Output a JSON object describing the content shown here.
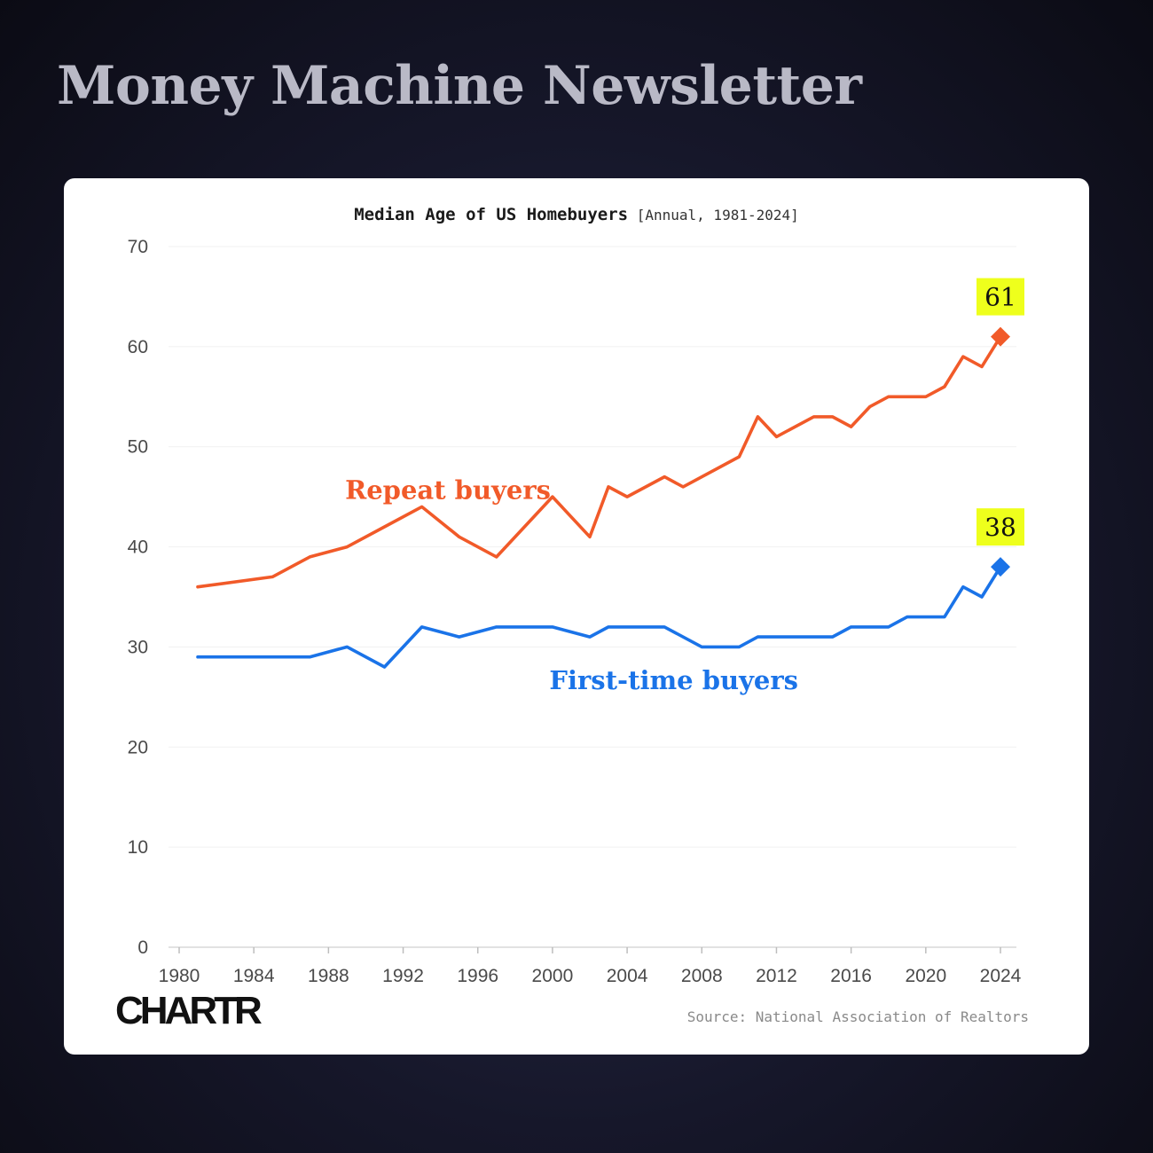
{
  "header": {
    "title": "Money Machine Newsletter"
  },
  "chart_data": {
    "type": "line",
    "title": "Median Age of US Homebuyers",
    "subtitle": "[Annual, 1981-2024]",
    "xlabel": "",
    "ylabel": "",
    "xlim": [
      1980,
      2024
    ],
    "ylim": [
      0,
      70
    ],
    "x_ticks": [
      1980,
      1984,
      1988,
      1992,
      1996,
      2000,
      2004,
      2008,
      2012,
      2016,
      2020,
      2024
    ],
    "y_ticks": [
      0,
      10,
      20,
      30,
      40,
      50,
      60,
      70
    ],
    "grid": true,
    "series": [
      {
        "name": "Repeat buyers",
        "color": "#f15a29",
        "end_marker": "diamond",
        "end_label": "61",
        "points": [
          [
            1981,
            36
          ],
          [
            1985,
            37
          ],
          [
            1987,
            39
          ],
          [
            1989,
            40
          ],
          [
            1991,
            42
          ],
          [
            1993,
            44
          ],
          [
            1995,
            41
          ],
          [
            1997,
            39
          ],
          [
            2000,
            45
          ],
          [
            2002,
            41
          ],
          [
            2003,
            46
          ],
          [
            2004,
            45
          ],
          [
            2006,
            47
          ],
          [
            2007,
            46
          ],
          [
            2010,
            49
          ],
          [
            2011,
            53
          ],
          [
            2012,
            51
          ],
          [
            2014,
            53
          ],
          [
            2015,
            53
          ],
          [
            2016,
            52
          ],
          [
            2017,
            54
          ],
          [
            2018,
            55
          ],
          [
            2019,
            55
          ],
          [
            2020,
            55
          ],
          [
            2021,
            56
          ],
          [
            2022,
            59
          ],
          [
            2023,
            58
          ],
          [
            2024,
            61
          ]
        ]
      },
      {
        "name": "First-time buyers",
        "color": "#1a73e8",
        "end_marker": "diamond",
        "end_label": "38",
        "points": [
          [
            1981,
            29
          ],
          [
            1985,
            29
          ],
          [
            1987,
            29
          ],
          [
            1989,
            30
          ],
          [
            1991,
            28
          ],
          [
            1993,
            32
          ],
          [
            1995,
            31
          ],
          [
            1997,
            32
          ],
          [
            2000,
            32
          ],
          [
            2002,
            31
          ],
          [
            2003,
            32
          ],
          [
            2004,
            32
          ],
          [
            2006,
            32
          ],
          [
            2008,
            30
          ],
          [
            2010,
            30
          ],
          [
            2011,
            31
          ],
          [
            2012,
            31
          ],
          [
            2014,
            31
          ],
          [
            2015,
            31
          ],
          [
            2016,
            32
          ],
          [
            2017,
            32
          ],
          [
            2018,
            32
          ],
          [
            2019,
            33
          ],
          [
            2020,
            33
          ],
          [
            2021,
            33
          ],
          [
            2022,
            36
          ],
          [
            2023,
            35
          ],
          [
            2024,
            38
          ]
        ]
      }
    ],
    "annotation_bg": "#eeff1c"
  },
  "footer": {
    "brand": "CHARTR",
    "source": "Source: National Association of Realtors"
  }
}
